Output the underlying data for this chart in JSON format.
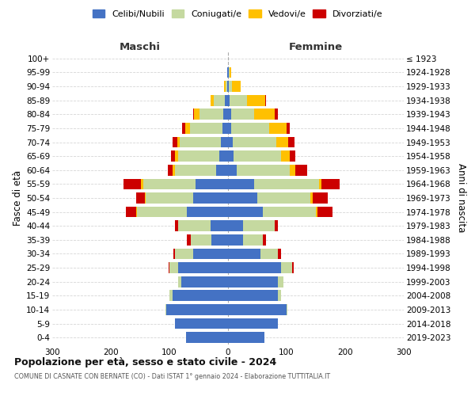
{
  "age_groups": [
    "0-4",
    "5-9",
    "10-14",
    "15-19",
    "20-24",
    "25-29",
    "30-34",
    "35-39",
    "40-44",
    "45-49",
    "50-54",
    "55-59",
    "60-64",
    "65-69",
    "70-74",
    "75-79",
    "80-84",
    "85-89",
    "90-94",
    "95-99",
    "100+"
  ],
  "birth_years": [
    "2019-2023",
    "2014-2018",
    "2009-2013",
    "2004-2008",
    "1999-2003",
    "1994-1998",
    "1989-1993",
    "1984-1988",
    "1979-1983",
    "1974-1978",
    "1969-1973",
    "1964-1968",
    "1959-1963",
    "1954-1958",
    "1949-1953",
    "1944-1948",
    "1939-1943",
    "1934-1938",
    "1929-1933",
    "1924-1928",
    "≤ 1923"
  ],
  "maschi": {
    "celibi": [
      72,
      90,
      105,
      95,
      80,
      85,
      60,
      28,
      30,
      70,
      60,
      55,
      20,
      15,
      12,
      10,
      8,
      5,
      2,
      1,
      0
    ],
    "coniugati": [
      0,
      0,
      2,
      5,
      5,
      15,
      30,
      35,
      55,
      85,
      80,
      90,
      70,
      70,
      70,
      55,
      40,
      20,
      2,
      0,
      0
    ],
    "vedovi": [
      0,
      0,
      0,
      0,
      0,
      0,
      0,
      0,
      0,
      2,
      2,
      3,
      5,
      5,
      5,
      8,
      10,
      5,
      3,
      1,
      0
    ],
    "divorziati": [
      0,
      0,
      0,
      0,
      0,
      2,
      3,
      7,
      5,
      18,
      15,
      30,
      8,
      7,
      7,
      5,
      2,
      0,
      0,
      0,
      0
    ]
  },
  "femmine": {
    "nubili": [
      62,
      85,
      100,
      85,
      85,
      90,
      55,
      25,
      25,
      60,
      50,
      45,
      15,
      10,
      8,
      5,
      5,
      3,
      2,
      1,
      0
    ],
    "coniugate": [
      0,
      0,
      2,
      5,
      10,
      20,
      30,
      35,
      55,
      90,
      90,
      110,
      90,
      80,
      75,
      65,
      40,
      30,
      5,
      2,
      0
    ],
    "vedove": [
      0,
      0,
      0,
      0,
      0,
      0,
      0,
      0,
      0,
      3,
      5,
      5,
      10,
      15,
      20,
      30,
      35,
      30,
      15,
      3,
      0
    ],
    "divorziate": [
      0,
      0,
      0,
      0,
      0,
      2,
      5,
      5,
      5,
      25,
      25,
      30,
      20,
      10,
      10,
      5,
      5,
      2,
      0,
      0,
      0
    ]
  },
  "colors": {
    "celibi": "#4472c4",
    "coniugati": "#c5d9a0",
    "vedovi": "#ffc000",
    "divorziati": "#cc0000"
  },
  "xlim": 300,
  "title": "Popolazione per età, sesso e stato civile - 2024",
  "subtitle": "COMUNE DI CASNATE CON BERNATE (CO) - Dati ISTAT 1° gennaio 2024 - Elaborazione TUTTITALIA.IT",
  "ylabel_left": "Fasce di età",
  "ylabel_right": "Anni di nascita",
  "header_left": "Maschi",
  "header_right": "Femmine",
  "legend_labels": [
    "Celibi/Nubili",
    "Coniugati/e",
    "Vedovi/e",
    "Divorziati/e"
  ],
  "bg_color": "#ffffff",
  "grid_color": "#cccccc"
}
